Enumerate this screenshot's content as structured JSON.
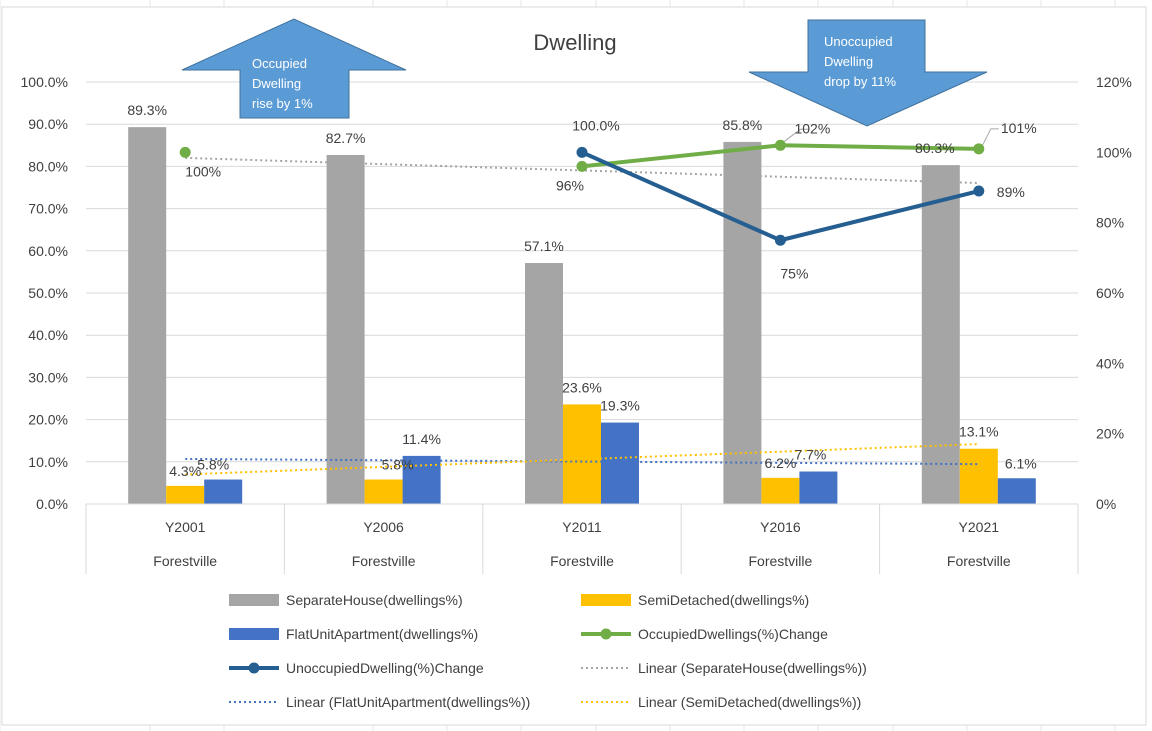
{
  "chart_data": {
    "type": "bar",
    "title": "Dwelling",
    "categories": [
      "Y2001",
      "Y2006",
      "Y2011",
      "Y2016",
      "Y2021"
    ],
    "category_group": [
      "Forestville",
      "Forestville",
      "Forestville",
      "Forestville",
      "Forestville"
    ],
    "y_left": {
      "ylim": [
        0,
        100
      ],
      "ticks": [
        "100.0%",
        "90.0%",
        "80.0%",
        "70.0%",
        "60.0%",
        "50.0%",
        "40.0%",
        "30.0%",
        "20.0%",
        "10.0%",
        "0.0%"
      ],
      "tick_values": [
        100,
        90,
        80,
        70,
        60,
        50,
        40,
        30,
        20,
        10,
        0
      ]
    },
    "y_right": {
      "ylim": [
        0,
        120
      ],
      "ticks": [
        "120%",
        "100%",
        "80%",
        "60%",
        "40%",
        "20%",
        "0%"
      ],
      "tick_values": [
        120,
        100,
        80,
        60,
        40,
        20,
        0
      ]
    },
    "grid": true,
    "bar_series": [
      {
        "name": "SeparateHouse(dwellings%)",
        "color": "#a5a5a5",
        "values": [
          89.3,
          82.7,
          57.1,
          85.8,
          80.3
        ],
        "labels": [
          "89.3%",
          "82.7%",
          "57.1%",
          "85.8%",
          "80.3%"
        ]
      },
      {
        "name": "SemiDetached(dwellings%)",
        "color": "#ffc000",
        "values": [
          4.3,
          5.8,
          23.6,
          6.2,
          13.1
        ],
        "labels": [
          "4.3%",
          "5.8%",
          "23.6%",
          "6.2%",
          "13.1%"
        ]
      },
      {
        "name": "FlatUnitApartment(dwellings%)",
        "color": "#4472c4",
        "values": [
          5.8,
          11.4,
          19.3,
          7.7,
          6.1
        ],
        "labels": [
          "5.8%",
          "11.4%",
          "19.3%",
          "7.7%",
          "6.1%"
        ]
      }
    ],
    "line_series": [
      {
        "name": "OccupiedDwellings(%)Change",
        "color": "#70ad47",
        "values": [
          100,
          null,
          96,
          102,
          101
        ],
        "labels": [
          "100%",
          "",
          "96%",
          "102%",
          "101%"
        ]
      },
      {
        "name": "UnoccupiedDwelling(%)Change",
        "color": "#255e91",
        "values": [
          null,
          null,
          100,
          75,
          89
        ],
        "labels": [
          "",
          "",
          "100.0%",
          "75%",
          "89%"
        ]
      }
    ],
    "trendlines": [
      {
        "name": "Linear (SeparateHouse(dwellings%))",
        "color": "#a5a5a5",
        "of": "SeparateHouse(dwellings%)"
      },
      {
        "name": "Linear (FlatUnitApartment(dwellings%))",
        "color": "#4472c4",
        "of": "FlatUnitApartment(dwellings%)"
      },
      {
        "name": "Linear (SemiDetached(dwellings%))",
        "color": "#ffc000",
        "of": "SemiDetached(dwellings%)"
      }
    ],
    "annotations": [
      {
        "text": [
          "Occupied",
          "Dwelling",
          "rise by 1%"
        ],
        "shape": "up-arrow",
        "color": "#5b9bd5"
      },
      {
        "text": [
          "Unoccupied",
          "Dwelling",
          "drop by 11%"
        ],
        "shape": "down-arrow",
        "color": "#5b9bd5"
      }
    ],
    "legend_position": "bottom",
    "legend": [
      "SeparateHouse(dwellings%)",
      "SemiDetached(dwellings%)",
      "FlatUnitApartment(dwellings%)",
      "OccupiedDwellings(%)Change",
      "UnoccupiedDwelling(%)Change",
      "Linear (SeparateHouse(dwellings%))",
      "Linear (FlatUnitApartment(dwellings%))",
      "Linear (SemiDetached(dwellings%))"
    ]
  }
}
